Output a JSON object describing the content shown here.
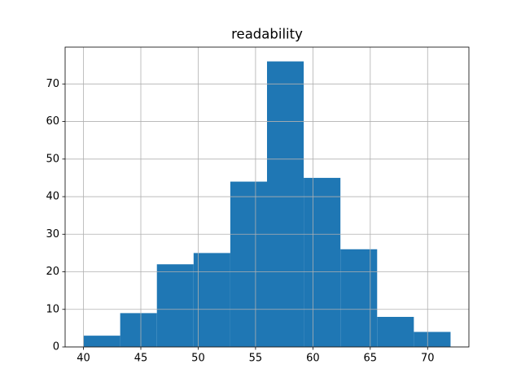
{
  "chart_data": {
    "type": "histogram",
    "title": "readability",
    "bins": [
      40,
      43.2,
      46.4,
      49.6,
      52.8,
      56,
      59.2,
      62.4,
      65.6,
      68.8,
      72
    ],
    "values": [
      3,
      9,
      22,
      25,
      44,
      76,
      45,
      26,
      8,
      4
    ],
    "color": "#1f77b4",
    "xlim": [
      38.4,
      73.6
    ],
    "xticks": [
      40,
      45,
      50,
      55,
      60,
      65,
      70
    ],
    "ylim": [
      0,
      79.8
    ],
    "yticks": [
      0,
      10,
      20,
      30,
      40,
      50,
      60,
      70
    ],
    "grid": true
  }
}
